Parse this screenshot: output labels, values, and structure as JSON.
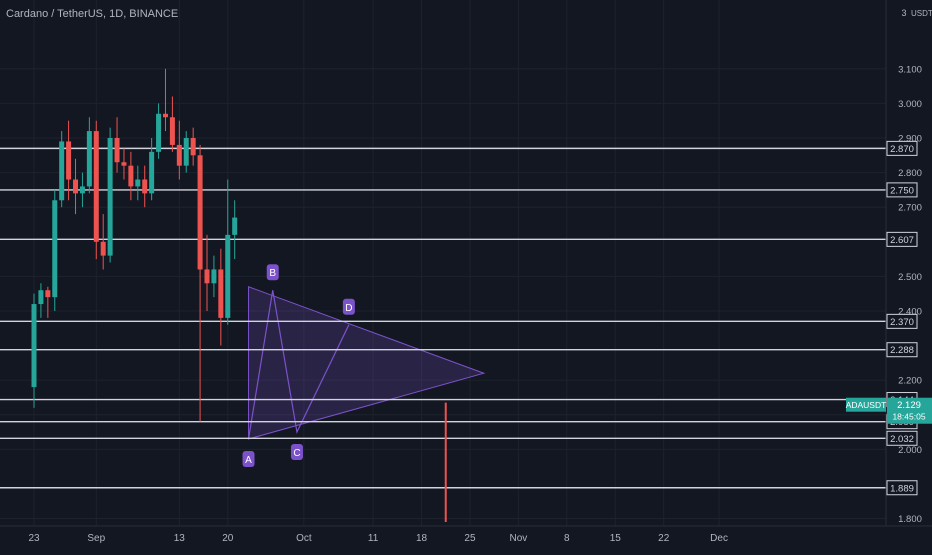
{
  "header": {
    "symbol_title": "Cardano / TetherUS, 1D, BINANCE"
  },
  "chart_data": {
    "type": "candlestick",
    "title": "Cardano / TetherUS, 1D, BINANCE",
    "currency_label": "USDT",
    "scale_top_label": "3",
    "ylim": [
      1.79,
      3.27
    ],
    "y_ticks": [
      "1.800",
      "2.000",
      "2.100",
      "2.200",
      "2.400",
      "2.500",
      "2.700",
      "2.800",
      "2.900",
      "3.000",
      "3.100"
    ],
    "x_ticks": [
      {
        "label": "23",
        "day": 0
      },
      {
        "label": "Sep",
        "day": 9
      },
      {
        "label": "13",
        "day": 21
      },
      {
        "label": "20",
        "day": 28
      },
      {
        "label": "Oct",
        "day": 39
      },
      {
        "label": "11",
        "day": 49
      },
      {
        "label": "18",
        "day": 56
      },
      {
        "label": "25",
        "day": 63
      },
      {
        "label": "Nov",
        "day": 70
      },
      {
        "label": "8",
        "day": 77
      },
      {
        "label": "15",
        "day": 84
      },
      {
        "label": "22",
        "day": 91
      },
      {
        "label": "Dec",
        "day": 99
      }
    ],
    "horizontal_levels": [
      "2.870",
      "2.750",
      "2.607",
      "2.370",
      "2.288",
      "2.144",
      "2.080",
      "2.032",
      "1.889"
    ],
    "current_price": {
      "symbol": "ADAUSDT",
      "price": "2.129",
      "countdown": "18:45:05",
      "color": "#26a69a"
    },
    "pattern": {
      "points": [
        {
          "label": "A",
          "day": 31,
          "price": 2.03
        },
        {
          "label": "B",
          "day": 34.5,
          "price": 2.46
        },
        {
          "label": "C",
          "day": 38,
          "price": 2.05
        },
        {
          "label": "D",
          "day": 45.5,
          "price": 2.36
        }
      ],
      "triangle": [
        {
          "day": 31,
          "price": 2.47
        },
        {
          "day": 65,
          "price": 2.22
        },
        {
          "day": 31,
          "price": 2.03
        }
      ],
      "marker_color": "#7b52c9"
    },
    "vertical_marker": {
      "day": 59.5,
      "price_from": 2.135,
      "price_to": 1.79,
      "color": "#ef5350"
    },
    "up_color": "#26a69a",
    "down_color": "#ef5350",
    "candles": [
      [
        2.18,
        2.45,
        2.12,
        2.42
      ],
      [
        2.42,
        2.48,
        2.38,
        2.46
      ],
      [
        2.46,
        2.47,
        2.38,
        2.44
      ],
      [
        2.44,
        2.75,
        2.4,
        2.72
      ],
      [
        2.72,
        2.92,
        2.7,
        2.89
      ],
      [
        2.89,
        2.95,
        2.72,
        2.78
      ],
      [
        2.78,
        2.84,
        2.68,
        2.74
      ],
      [
        2.74,
        2.8,
        2.7,
        2.76
      ],
      [
        2.76,
        2.96,
        2.74,
        2.92
      ],
      [
        2.92,
        2.95,
        2.55,
        2.6
      ],
      [
        2.6,
        2.68,
        2.52,
        2.56
      ],
      [
        2.56,
        2.93,
        2.54,
        2.9
      ],
      [
        2.9,
        2.96,
        2.8,
        2.83
      ],
      [
        2.83,
        2.87,
        2.78,
        2.82
      ],
      [
        2.82,
        2.86,
        2.72,
        2.76
      ],
      [
        2.76,
        2.82,
        2.72,
        2.78
      ],
      [
        2.78,
        2.82,
        2.7,
        2.74
      ],
      [
        2.74,
        2.9,
        2.72,
        2.86
      ],
      [
        2.86,
        3.0,
        2.84,
        2.97
      ],
      [
        2.97,
        3.1,
        2.92,
        2.96
      ],
      [
        2.96,
        3.02,
        2.86,
        2.88
      ],
      [
        2.88,
        2.95,
        2.78,
        2.82
      ],
      [
        2.82,
        2.92,
        2.8,
        2.9
      ],
      [
        2.9,
        2.93,
        2.82,
        2.85
      ],
      [
        2.85,
        2.88,
        2.08,
        2.52
      ],
      [
        2.52,
        2.62,
        2.4,
        2.48
      ],
      [
        2.48,
        2.56,
        2.44,
        2.52
      ],
      [
        2.52,
        2.58,
        2.3,
        2.38
      ],
      [
        2.38,
        2.78,
        2.36,
        2.62
      ],
      [
        2.62,
        2.72,
        2.55,
        2.67
      ]
    ]
  }
}
